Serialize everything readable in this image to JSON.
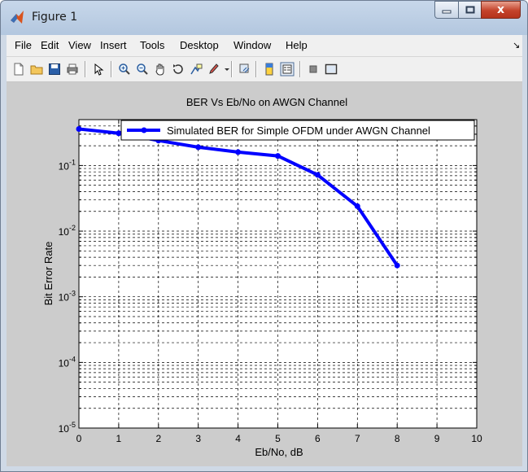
{
  "window": {
    "title": "Figure 1",
    "close_glyph": "x"
  },
  "menu": {
    "items": [
      "File",
      "Edit",
      "View",
      "Insert",
      "Tools",
      "Desktop",
      "Window",
      "Help"
    ]
  },
  "toolbar": {
    "icons": [
      "new-figure-icon",
      "open-file-icon",
      "save-icon",
      "print-icon",
      "pointer-icon",
      "zoom-in-icon",
      "zoom-out-icon",
      "pan-hand-icon",
      "rotate-3d-icon",
      "data-cursor-icon",
      "brush-icon",
      "link-plot-icon",
      "colorbar-icon",
      "legend-icon",
      "hide-plot-tools-icon",
      "show-plot-tools-icon"
    ]
  },
  "colors": {
    "line": "#0000ff",
    "figure_bg": "#cccccc",
    "axes_bg": "#ffffff"
  },
  "chart_data": {
    "type": "line",
    "title": "BER Vs Eb/No on AWGN Channel",
    "xlabel": "Eb/No, dB",
    "ylabel": "Bit Error Rate",
    "xlim": [
      0,
      10
    ],
    "ylim": [
      1e-05,
      0.5
    ],
    "yscale": "log",
    "grid": true,
    "x_ticks": [
      "0",
      "1",
      "2",
      "3",
      "4",
      "5",
      "6",
      "7",
      "8",
      "9",
      "10"
    ],
    "y_ticks": [
      {
        "base": "10",
        "exp": "-5",
        "value": 1e-05
      },
      {
        "base": "10",
        "exp": "-4",
        "value": 0.0001
      },
      {
        "base": "10",
        "exp": "-3",
        "value": 0.001
      },
      {
        "base": "10",
        "exp": "-2",
        "value": 0.01
      },
      {
        "base": "10",
        "exp": "-1",
        "value": 0.1
      }
    ],
    "legend": {
      "position": "top-right",
      "entries": [
        "Simulated BER for Simple OFDM under AWGN Channel"
      ]
    },
    "series": [
      {
        "name": "Simulated BER for Simple OFDM under AWGN Channel",
        "x": [
          0,
          1,
          2,
          3,
          4,
          5,
          6,
          7,
          8
        ],
        "y": [
          0.36,
          0.31,
          0.24,
          0.19,
          0.16,
          0.14,
          0.072,
          0.024,
          0.003
        ]
      }
    ]
  }
}
